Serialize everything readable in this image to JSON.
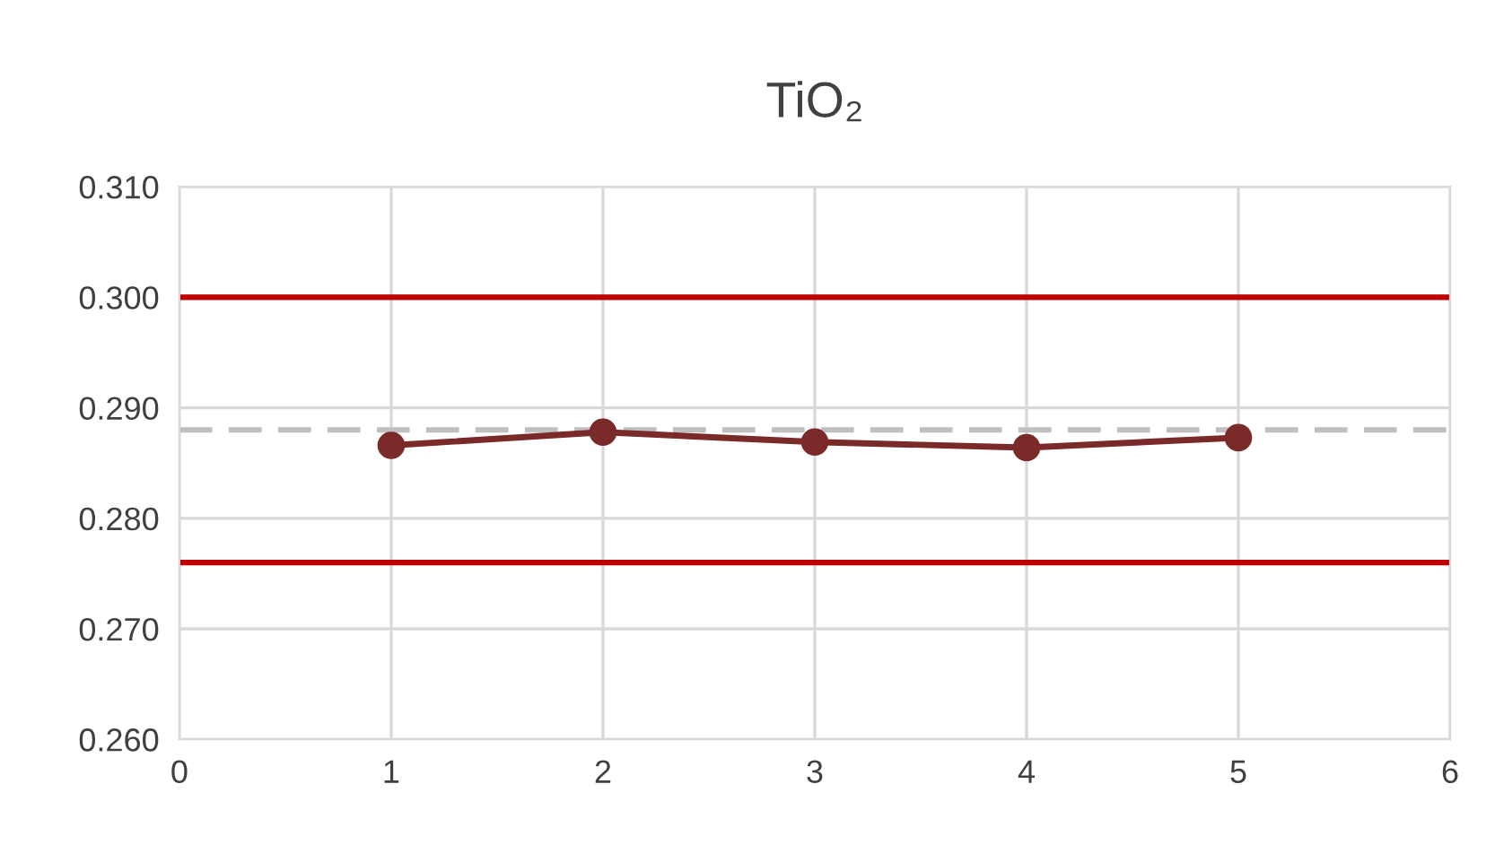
{
  "chart_data": {
    "type": "line",
    "title": "TiO₂",
    "x": [
      1,
      2,
      3,
      4,
      5
    ],
    "series": [
      {
        "color": "#7b2a2a",
        "values": [
          0.2866,
          0.2878,
          0.2869,
          0.2864,
          0.2873
        ]
      }
    ],
    "marker": "circle",
    "line_style": "solid",
    "xlim": [
      0,
      6
    ],
    "xticks": [
      0,
      1,
      2,
      3,
      4,
      5,
      6
    ],
    "ylim": [
      0.26,
      0.31
    ],
    "yticks": [
      {
        "value": 0.26,
        "label": "0.260"
      },
      {
        "value": 0.27,
        "label": "0.270"
      },
      {
        "value": 0.28,
        "label": "0.280"
      },
      {
        "value": 0.29,
        "label": "0.290"
      },
      {
        "value": 0.3,
        "label": "0.300"
      },
      {
        "value": 0.31,
        "label": "0.310"
      }
    ],
    "grid": true,
    "ref_lines": [
      {
        "axis": "y",
        "value": 0.3,
        "color": "#c00000",
        "line_style": "solid"
      },
      {
        "axis": "y",
        "value": 0.276,
        "color": "#c00000",
        "line_style": "solid"
      },
      {
        "axis": "y",
        "value": 0.288,
        "color": "#bfbfbf",
        "line_style": "dashed"
      }
    ]
  }
}
